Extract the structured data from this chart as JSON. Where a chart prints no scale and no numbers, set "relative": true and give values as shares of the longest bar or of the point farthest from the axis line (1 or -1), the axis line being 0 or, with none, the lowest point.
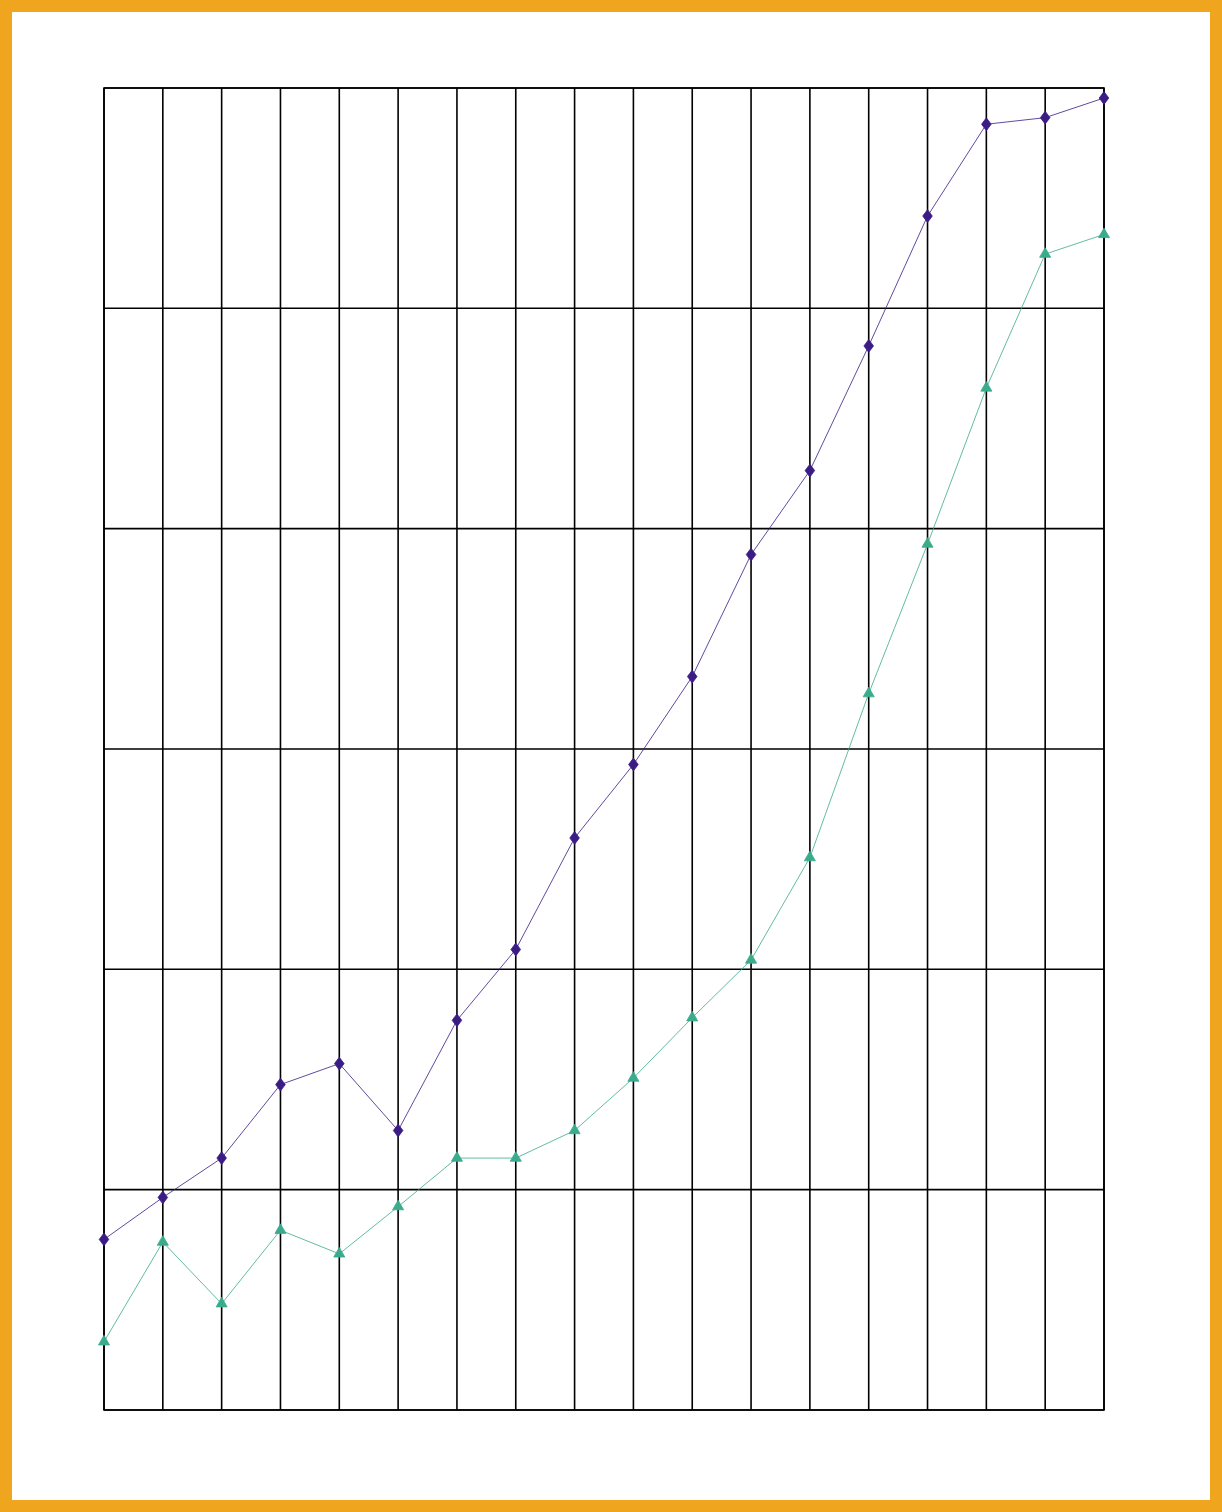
{
  "chart_data": {
    "type": "line",
    "relative": true,
    "grid": true,
    "categories": [
      null,
      null,
      null,
      null,
      null,
      null,
      null,
      null,
      null,
      null,
      null,
      null,
      null,
      null,
      null,
      null,
      null,
      null
    ],
    "series": [
      {
        "color": "#3a1c84",
        "marker": "diamond",
        "values": [
          0.13,
          0.162,
          0.192,
          0.248,
          0.264,
          0.213,
          0.297,
          0.351,
          0.436,
          0.492,
          0.559,
          0.652,
          0.716,
          0.811,
          0.91,
          0.98,
          0.985,
          1.0
        ]
      },
      {
        "color": "#3aab8c",
        "marker": "triangle",
        "values": [
          0.052,
          0.128,
          0.081,
          0.137,
          0.119,
          0.155,
          0.192,
          0.192,
          0.213,
          0.253,
          0.299,
          0.343,
          0.421,
          0.546,
          0.66,
          0.779,
          0.881,
          0.896
        ]
      }
    ]
  }
}
